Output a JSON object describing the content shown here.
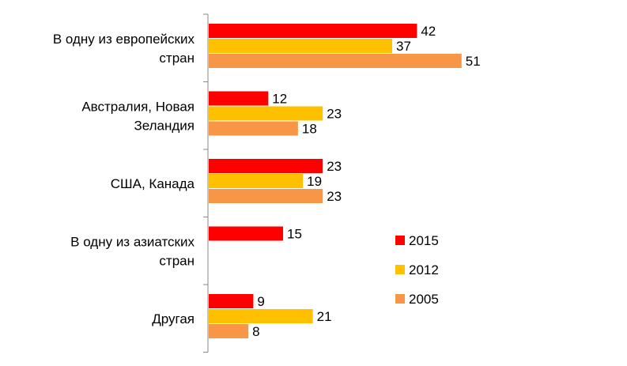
{
  "chart_data": {
    "type": "bar",
    "orientation": "horizontal",
    "categories": [
      [
        "В одну из европейских",
        "стран"
      ],
      [
        "Австралия, Новая",
        "Зеландия"
      ],
      [
        "США, Канада"
      ],
      [
        "В одну из азиатских",
        "стран"
      ],
      [
        "Другая"
      ]
    ],
    "series": [
      {
        "name": "2015",
        "color": "#ff0000",
        "values": [
          42,
          12,
          23,
          15,
          9
        ]
      },
      {
        "name": "2012",
        "color": "#ffc000",
        "values": [
          37,
          23,
          19,
          null,
          21
        ]
      },
      {
        "name": "2005",
        "color": "#f79646",
        "values": [
          51,
          18,
          23,
          null,
          8
        ]
      }
    ],
    "title": "",
    "xlabel": "",
    "ylabel": "",
    "xlim": [
      0,
      55
    ],
    "grid": false,
    "legend": "right"
  }
}
